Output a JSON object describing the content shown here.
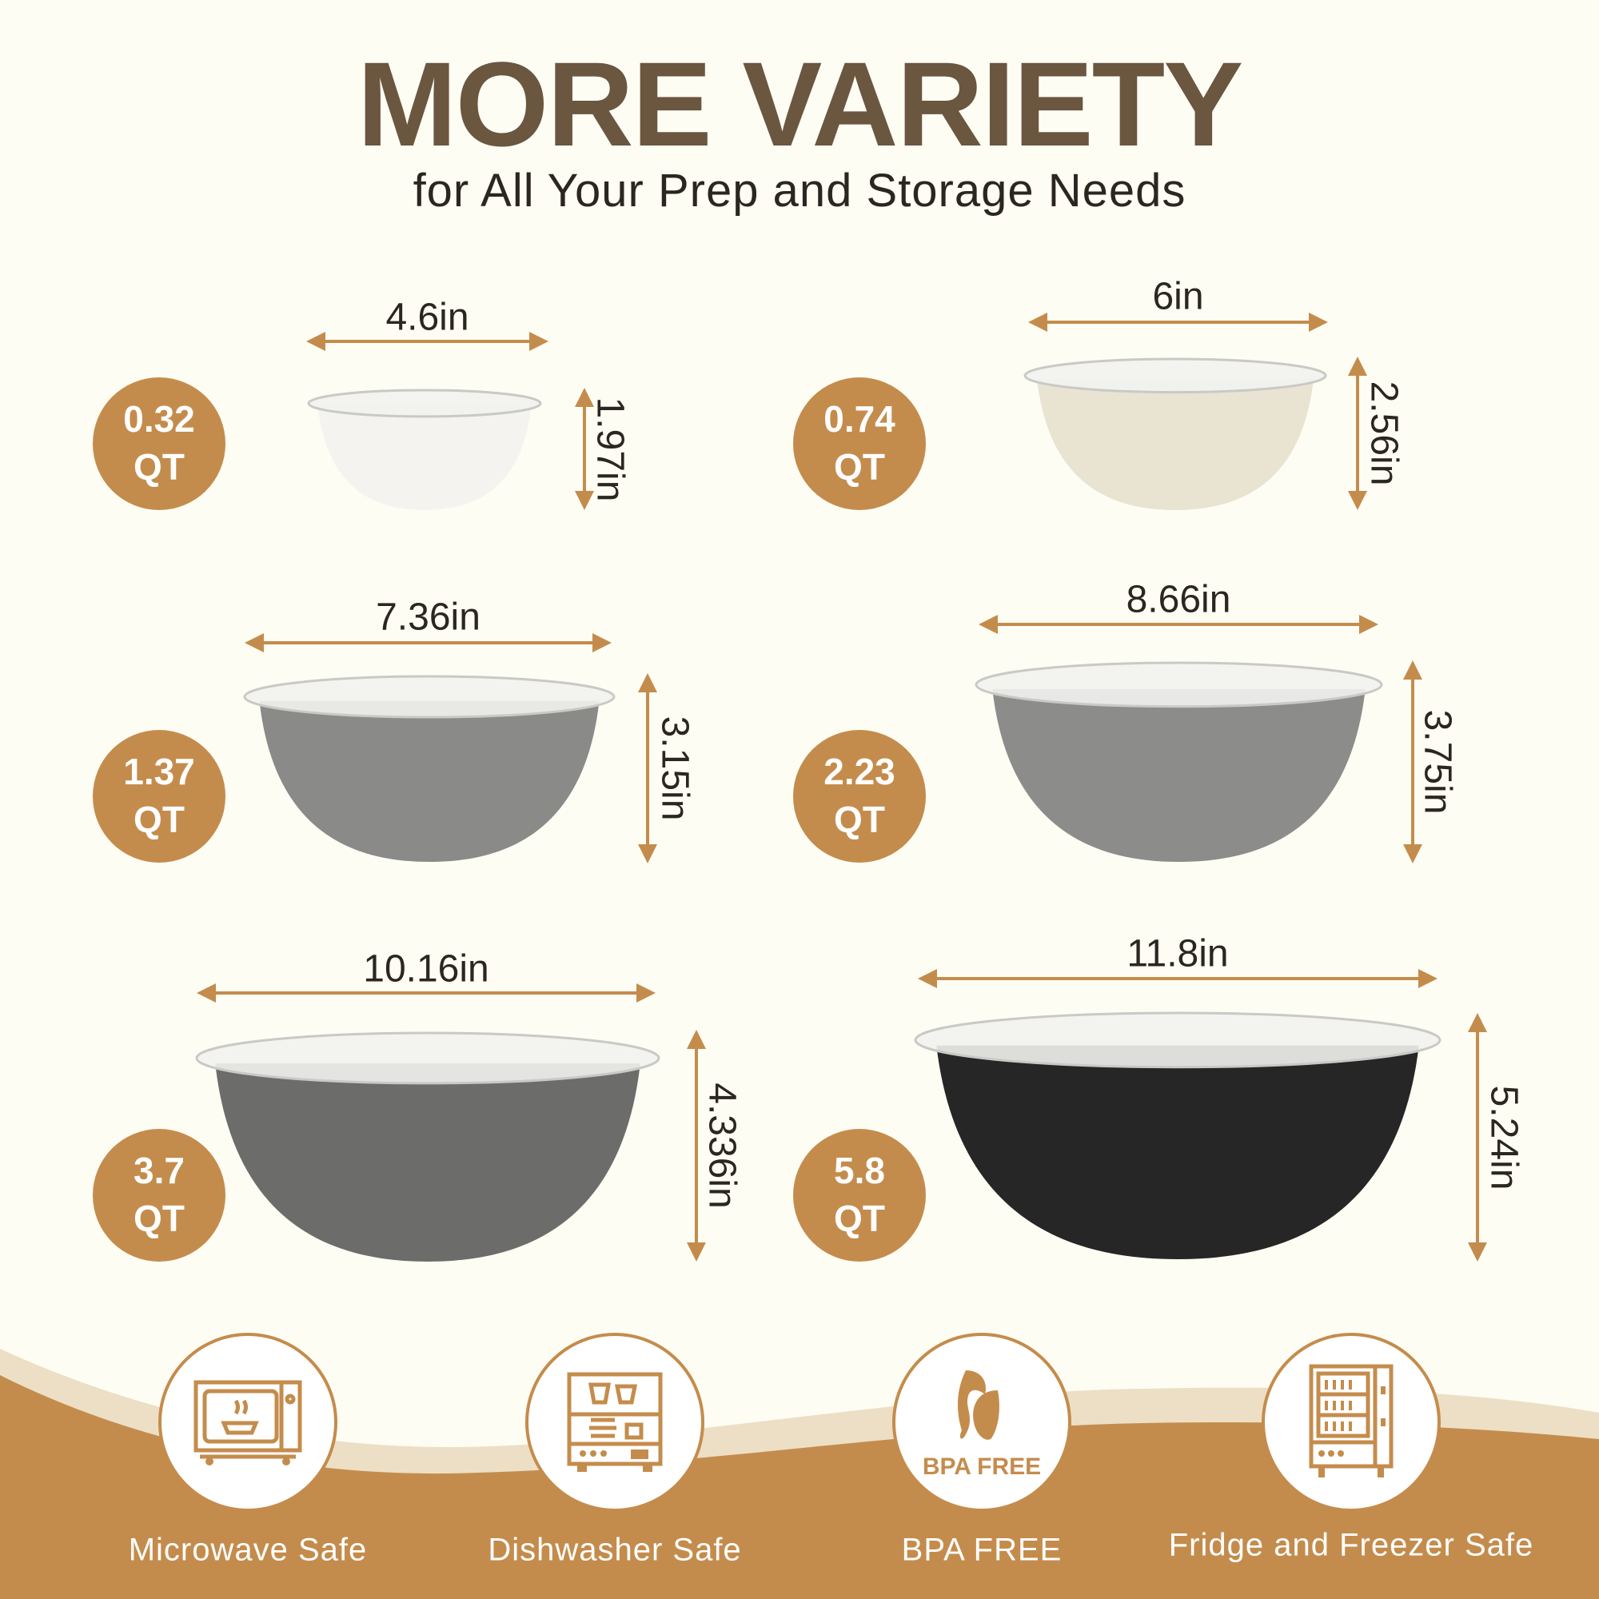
{
  "header": {
    "title": "MORE VARIETY",
    "subtitle": "for All Your Prep and Storage Needs"
  },
  "colors": {
    "background": "#fefdf4",
    "accent": "#c48c4c",
    "title": "#6b5640",
    "band": "#ecdfc5"
  },
  "bowls": [
    {
      "capacity": "0.32",
      "unit": "QT",
      "width": "4.6in",
      "height": "1.97in",
      "color": "#f4f3ef"
    },
    {
      "capacity": "0.74",
      "unit": "QT",
      "width": "6in",
      "height": "2.56in",
      "color": "#e9e3d2"
    },
    {
      "capacity": "1.37",
      "unit": "QT",
      "width": "7.36in",
      "height": "3.15in",
      "color": "#8a8a88"
    },
    {
      "capacity": "2.23",
      "unit": "QT",
      "width": "8.66in",
      "height": "3.75in",
      "color": "#8c8c8a"
    },
    {
      "capacity": "3.7",
      "unit": "QT",
      "width": "10.16in",
      "height": "4.336in",
      "color": "#6c6c6a"
    },
    {
      "capacity": "5.8",
      "unit": "QT",
      "width": "11.8in",
      "height": "5.24in",
      "color": "#262626"
    }
  ],
  "features": [
    {
      "label": "Microwave Safe",
      "icon": "microwave-icon"
    },
    {
      "label": "Dishwasher Safe",
      "icon": "dishwasher-icon"
    },
    {
      "label": "BPA FREE",
      "icon": "bpa-free-leaf-icon",
      "icon_text": "BPA FREE"
    },
    {
      "label": "Fridge and Freezer Safe",
      "icon": "fridge-icon"
    }
  ]
}
